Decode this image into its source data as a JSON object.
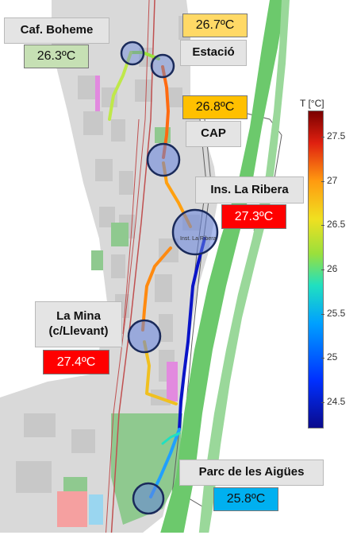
{
  "map": {
    "labels": {
      "caf_boheme": "Caf. Boheme",
      "estacio": "Estació",
      "cap": "CAP",
      "ins_la_ribera": "Ins. La Ribera",
      "la_mina_line1": "La Mina",
      "la_mina_line2": "(c/Llevant)",
      "parc_aigues": "Parc de les Aigües",
      "map_school_text": "Inst. La Ribera"
    },
    "temperatures": {
      "caf_boheme": "26.3ºC",
      "estacio": "26.7ºC",
      "cap": "26.8ºC",
      "ins_la_ribera": "27.3ºC",
      "la_mina": "27.4ºC",
      "parc_aigues": "25.8ºC"
    },
    "colors": {
      "caf_boheme": "#c6e0b4",
      "estacio": "#ffd966",
      "cap": "#ffc000",
      "ins_la_ribera": "#ff0000",
      "la_mina": "#ff0000",
      "parc_aigues": "#00b0f0"
    }
  },
  "colorbar": {
    "title": "T [°C]",
    "ticks": [
      "27.5",
      "27",
      "26.5",
      "26",
      "25.5",
      "25",
      "24.5"
    ],
    "min": 24.2,
    "max": 27.8
  }
}
